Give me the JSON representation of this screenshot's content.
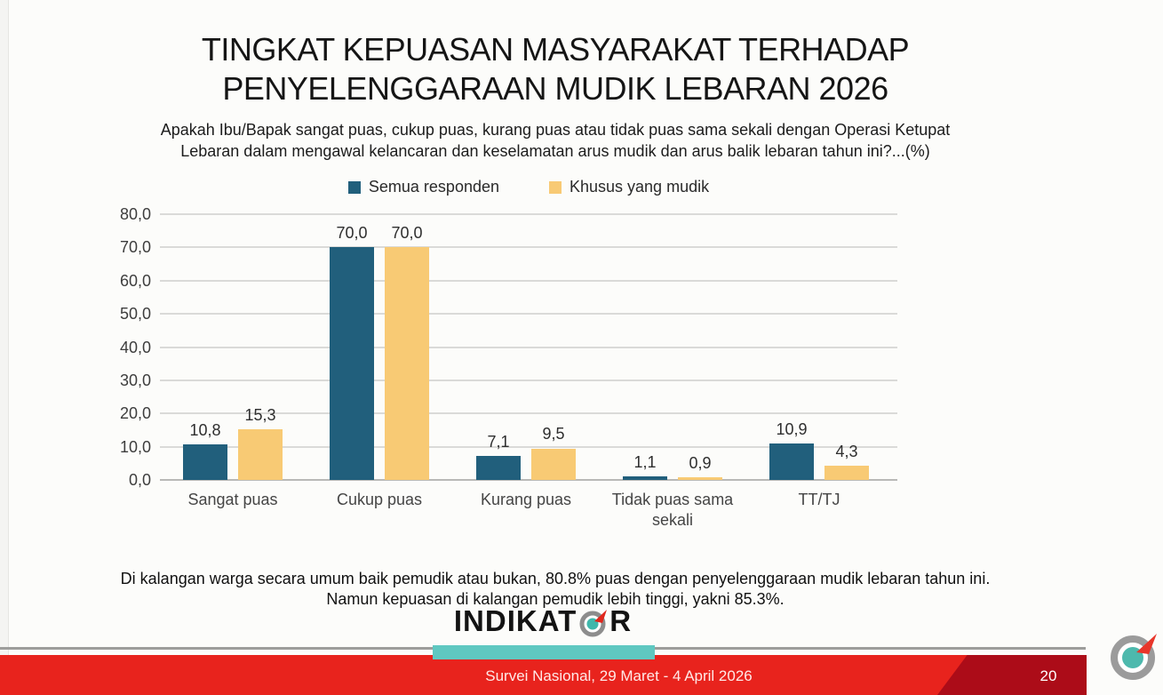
{
  "slide": {
    "title_line1": "TINGKAT KEPUASAN MASYARAKAT TERHADAP",
    "title_line2": "PENYELENGGARAAN MUDIK LEBARAN 2026",
    "question_line1": "Apakah Ibu/Bapak sangat puas, cukup puas, kurang puas atau tidak puas sama sekali dengan Operasi Ketupat",
    "question_line2": "Lebaran dalam mengawal kelancaran dan keselamatan arus mudik dan arus balik lebaran tahun ini?...(%)",
    "note_line1": "Di kalangan warga secara umum baik pemudik atau bukan, 80.8% puas dengan penyelenggaraan mudik lebaran tahun ini.",
    "note_line2": "Namun kepuasan di kalangan pemudik lebih tinggi, yakni 85.3%.",
    "logo": {
      "prefix": "INDIKAT",
      "suffix": "R",
      "icon": "compass-icon"
    },
    "footer": {
      "survey_label": "Survei Nasional, 29 Maret - 4 April 2026",
      "page_number": "20"
    }
  },
  "chart_data": {
    "type": "bar",
    "title": "",
    "categories": [
      "Sangat puas",
      "Cukup puas",
      "Kurang puas",
      "Tidak puas sama sekali",
      "TT/TJ"
    ],
    "series": [
      {
        "name": "Semua responden",
        "color": "#215f7c",
        "values": [
          10.8,
          70.0,
          7.1,
          1.1,
          10.9
        ],
        "value_labels": [
          "10,8",
          "70,0",
          "7,1",
          "1,1",
          "10,9"
        ]
      },
      {
        "name": "Khusus yang mudik",
        "color": "#f8ca74",
        "values": [
          15.3,
          70.0,
          9.5,
          0.9,
          4.3
        ],
        "value_labels": [
          "15,3",
          "70,0",
          "9,5",
          "0,9",
          "4,3"
        ]
      }
    ],
    "ylim": [
      0,
      80
    ],
    "ytick_labels": [
      "80,0",
      "70,0",
      "60,0",
      "50,0",
      "40,0",
      "30,0",
      "20,0",
      "10,0",
      "0,0"
    ],
    "grid": true,
    "legend_position": "top",
    "decimal_separator": ","
  },
  "colors": {
    "series_semua_responden": "#215f7c",
    "series_khusus_mudik": "#f8ca74",
    "footer_red": "#e8231d",
    "footer_maroon": "#ac0c18",
    "teal_accent": "#5fc8c1",
    "gridline": "#dadad8",
    "compass_teal": "#3fb7ab",
    "compass_red": "#e0261c"
  }
}
